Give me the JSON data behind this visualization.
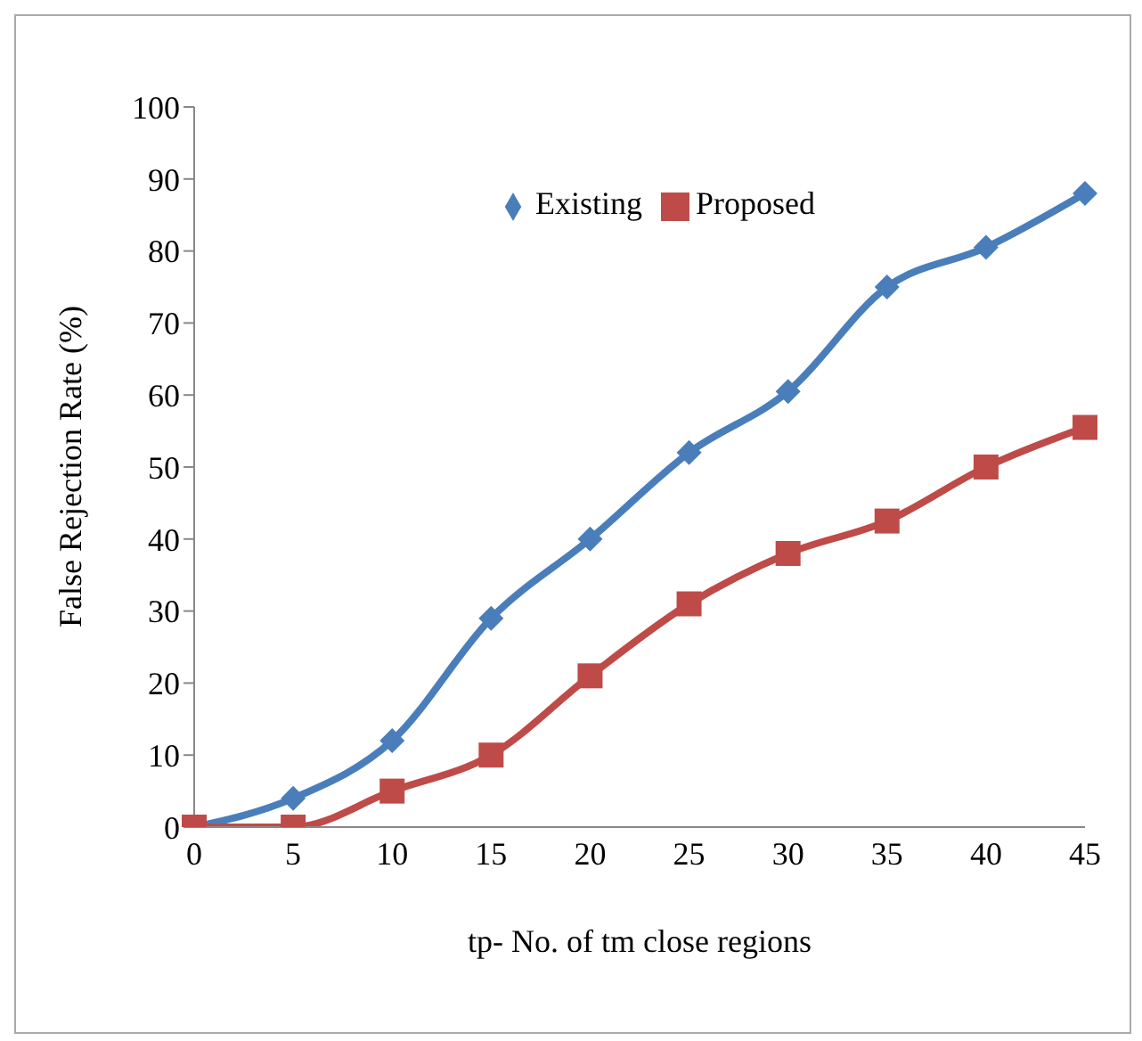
{
  "chart_data": {
    "type": "line",
    "xlabel": "tp- No. of tm close regions",
    "ylabel": "False Rejection Rate (%)",
    "categories": [
      "0",
      "5",
      "10",
      "15",
      "20",
      "25",
      "30",
      "35",
      "40",
      "45"
    ],
    "ylim": [
      0,
      100
    ],
    "yticks": [
      0,
      10,
      20,
      30,
      40,
      50,
      60,
      70,
      80,
      90,
      100
    ],
    "grid": false,
    "legend": "top",
    "series": [
      {
        "name": "Existing",
        "color": "#4a7ebb",
        "marker": "diamond",
        "values": [
          0,
          4,
          12,
          29,
          40,
          52,
          60.5,
          75,
          80.5,
          88
        ]
      },
      {
        "name": "Proposed",
        "color": "#be4b48",
        "marker": "square",
        "values": [
          0,
          0,
          5,
          10,
          21,
          31,
          38,
          42.5,
          50,
          55.5
        ]
      }
    ]
  }
}
